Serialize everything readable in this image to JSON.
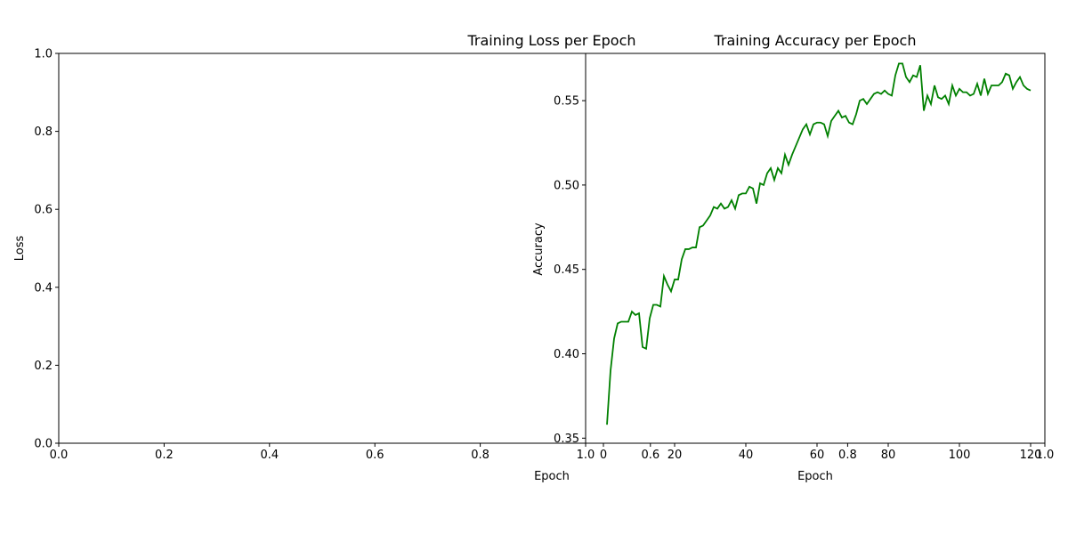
{
  "chart_data": [
    {
      "type": "line",
      "title": "Training Loss per Epoch",
      "xlabel": "Epoch",
      "ylabel": "Loss",
      "xlim": [
        0,
        1
      ],
      "ylim": [
        0,
        1
      ],
      "xticks": [
        "0.0",
        "0.2",
        "0.4",
        "0.6",
        "0.8",
        "1.0"
      ],
      "yticks": [
        "0.0",
        "0.2",
        "0.4",
        "0.6",
        "0.8",
        "1.0"
      ],
      "series": [],
      "grid": false
    },
    {
      "type": "line",
      "title": "Training Accuracy per Epoch",
      "xlabel": "Epoch",
      "ylabel": "Accuracy",
      "xlim": [
        -5,
        124
      ],
      "ylim": [
        0.347,
        0.578
      ],
      "xticks": [
        "0",
        "20",
        "40",
        "60",
        "80",
        "100",
        "120"
      ],
      "yticks": [
        "0.35",
        "0.40",
        "0.45",
        "0.50",
        "0.55"
      ],
      "grid": false,
      "series": [
        {
          "color": "#008000",
          "x": [
            1,
            2,
            3,
            4,
            5,
            6,
            7,
            8,
            9,
            10,
            11,
            12,
            13,
            14,
            15,
            16,
            17,
            18,
            19,
            20,
            21,
            22,
            23,
            24,
            25,
            26,
            27,
            28,
            29,
            30,
            31,
            32,
            33,
            34,
            35,
            36,
            37,
            38,
            39,
            40,
            41,
            42,
            43,
            44,
            45,
            46,
            47,
            48,
            49,
            50,
            51,
            52,
            53,
            54,
            55,
            56,
            57,
            58,
            59,
            60,
            61,
            62,
            63,
            64,
            65,
            66,
            67,
            68,
            69,
            70,
            71,
            72,
            73,
            74,
            75,
            76,
            77,
            78,
            79,
            80,
            81,
            82,
            83,
            84,
            85,
            86,
            87,
            88,
            89,
            90,
            91,
            92,
            93,
            94,
            95,
            96,
            97,
            98,
            99,
            100,
            101,
            102,
            103,
            104,
            105,
            106,
            107,
            108,
            109,
            110,
            111,
            112,
            113,
            114,
            115,
            116,
            117,
            118,
            119,
            120
          ],
          "y": [
            0.358,
            0.39,
            0.409,
            0.418,
            0.419,
            0.419,
            0.419,
            0.425,
            0.423,
            0.424,
            0.404,
            0.403,
            0.421,
            0.429,
            0.429,
            0.428,
            0.446,
            0.441,
            0.437,
            0.444,
            0.444,
            0.456,
            0.462,
            0.462,
            0.463,
            0.463,
            0.475,
            0.476,
            0.479,
            0.482,
            0.487,
            0.486,
            0.489,
            0.486,
            0.487,
            0.491,
            0.486,
            0.494,
            0.495,
            0.495,
            0.499,
            0.498,
            0.489,
            0.501,
            0.5,
            0.507,
            0.51,
            0.503,
            0.51,
            0.507,
            0.518,
            0.512,
            0.518,
            0.523,
            0.528,
            0.533,
            0.536,
            0.53,
            0.536,
            0.537,
            0.537,
            0.536,
            0.529,
            0.538,
            0.541,
            0.544,
            0.54,
            0.541,
            0.537,
            0.536,
            0.542,
            0.55,
            0.551,
            0.548,
            0.551,
            0.554,
            0.555,
            0.554,
            0.556,
            0.554,
            0.553,
            0.565,
            0.572,
            0.572,
            0.564,
            0.561,
            0.565,
            0.564,
            0.571,
            0.544,
            0.553,
            0.548,
            0.559,
            0.552,
            0.551,
            0.553,
            0.548,
            0.559,
            0.553,
            0.557,
            0.555,
            0.555,
            0.553,
            0.554,
            0.56,
            0.553,
            0.563,
            0.554,
            0.559,
            0.559,
            0.559,
            0.561,
            0.566,
            0.565,
            0.557,
            0.561,
            0.564,
            0.559,
            0.557,
            0.556
          ]
        }
      ]
    },
    {
      "type": "overlay",
      "xlim": [
        0,
        1
      ],
      "xticks": [
        "0.6",
        "0.8",
        "1.0"
      ]
    }
  ]
}
